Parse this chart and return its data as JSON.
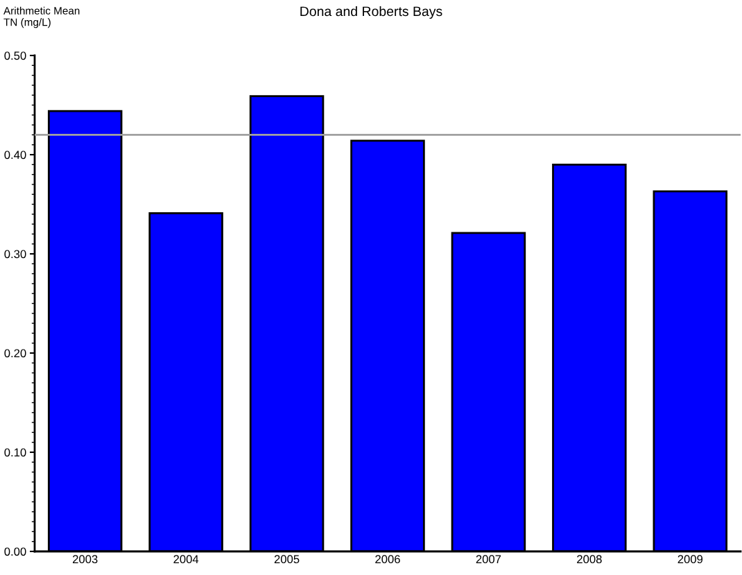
{
  "chart_data": {
    "type": "bar",
    "title": "Dona and Roberts Bays",
    "ylabel": "Arithmetic Mean\nTN (mg/L)",
    "categories": [
      "2003",
      "2004",
      "2005",
      "2006",
      "2007",
      "2008",
      "2009"
    ],
    "values": [
      0.444,
      0.341,
      0.459,
      0.414,
      0.321,
      0.39,
      0.363
    ],
    "color": "#0000ff",
    "ylim": [
      0,
      0.5
    ],
    "yticks": [
      {
        "value": 0,
        "label": "0.00"
      },
      {
        "value": 0.1,
        "label": "0.10"
      },
      {
        "value": 0.2,
        "label": "0.20"
      },
      {
        "value": 0.3,
        "label": "0.30"
      },
      {
        "value": 0.4,
        "label": "0.40"
      },
      {
        "value": 0.5,
        "label": "0.50"
      }
    ],
    "ref_lines": [
      {
        "axis": "y",
        "value": 0.42,
        "color": "#a0a0a0"
      }
    ],
    "grid": false
  }
}
